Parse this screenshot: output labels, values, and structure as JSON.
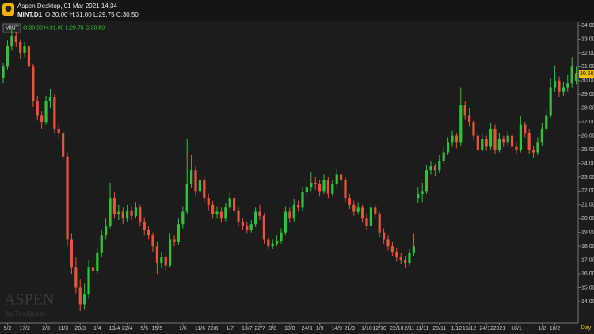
{
  "chart_data": {
    "type": "candlestick",
    "app_title": "Aspen Desktop, 01 Mar 2021 14:34",
    "symbol": "MINT,D1",
    "ohlc_text": "O:30.00 H:31.00 L:29.75 C:30.50",
    "chart_symbol": "MINT",
    "watermark": "ASPEN",
    "watermark_sub": "by ThaiQuest",
    "period_label": "Day",
    "price_tag": {
      "value": 30.5,
      "label": "30.50"
    },
    "up_color": "#2fc23a",
    "down_color": "#e8543a",
    "ylim": [
      12.45,
      34.23
    ],
    "xlim": [
      -0.75,
      134.45
    ],
    "yticks": [
      {
        "value": 14,
        "label": "14.00"
      },
      {
        "value": 15,
        "label": "15.00"
      },
      {
        "value": 16,
        "label": "16.00"
      },
      {
        "value": 17,
        "label": "17.00"
      },
      {
        "value": 18,
        "label": "18.00"
      },
      {
        "value": 19,
        "label": "19.00"
      },
      {
        "value": 20,
        "label": "20.00"
      },
      {
        "value": 21,
        "label": "21.00"
      },
      {
        "value": 22,
        "label": "22.00"
      },
      {
        "value": 23,
        "label": "23.00"
      },
      {
        "value": 24,
        "label": "24.00"
      },
      {
        "value": 25,
        "label": "25.00"
      },
      {
        "value": 26,
        "label": "26.00"
      },
      {
        "value": 27,
        "label": "27.00"
      },
      {
        "value": 28,
        "label": "28.00"
      },
      {
        "value": 29,
        "label": "29.00"
      },
      {
        "value": 30,
        "label": "30.00"
      },
      {
        "value": 31,
        "label": "31.00"
      },
      {
        "value": 32,
        "label": "32.00"
      },
      {
        "value": 33,
        "label": "33.00"
      },
      {
        "value": 34,
        "label": "34.00"
      }
    ],
    "xticks": [
      {
        "value": 1,
        "label": "5/2"
      },
      {
        "value": 5,
        "label": "17/2"
      },
      {
        "value": 10,
        "label": "2/3"
      },
      {
        "value": 14,
        "label": "11/3"
      },
      {
        "value": 18,
        "label": "20/3"
      },
      {
        "value": 22,
        "label": "1/4"
      },
      {
        "value": 26,
        "label": "13/4"
      },
      {
        "value": 29,
        "label": "22/4"
      },
      {
        "value": 33,
        "label": "5/5"
      },
      {
        "value": 36,
        "label": "15/5"
      },
      {
        "value": 42,
        "label": "1/6"
      },
      {
        "value": 46,
        "label": "11/6"
      },
      {
        "value": 49,
        "label": "22/6"
      },
      {
        "value": 53,
        "label": "1/7"
      },
      {
        "value": 57,
        "label": "13/7"
      },
      {
        "value": 60,
        "label": "22/7"
      },
      {
        "value": 63,
        "label": "3/8"
      },
      {
        "value": 67,
        "label": "13/8"
      },
      {
        "value": 71,
        "label": "24/8"
      },
      {
        "value": 74,
        "label": "1/9"
      },
      {
        "value": 78,
        "label": "14/9"
      },
      {
        "value": 81,
        "label": "21/9"
      },
      {
        "value": 85,
        "label": "1/10"
      },
      {
        "value": 88,
        "label": "12/10"
      },
      {
        "value": 92,
        "label": "22/10"
      },
      {
        "value": 95,
        "label": "2/11"
      },
      {
        "value": 98,
        "label": "11/11"
      },
      {
        "value": 102,
        "label": "20/11"
      },
      {
        "value": 106,
        "label": "1/12"
      },
      {
        "value": 109,
        "label": "15/12"
      },
      {
        "value": 113,
        "label": "24/12"
      },
      {
        "value": 116,
        "label": "2021"
      },
      {
        "value": 120,
        "label": "18/1"
      },
      {
        "value": 126,
        "label": "1/2"
      },
      {
        "value": 129,
        "label": "10/2"
      }
    ],
    "candles": [
      [
        30.2,
        31.3,
        29.8,
        31.0
      ],
      [
        31.0,
        32.9,
        30.8,
        32.5
      ],
      [
        32.5,
        33.8,
        32.2,
        33.2
      ],
      [
        33.2,
        33.5,
        32.4,
        32.8
      ],
      [
        32.8,
        33.0,
        31.6,
        32.0
      ],
      [
        32.0,
        32.8,
        31.7,
        32.5
      ],
      [
        32.5,
        32.7,
        30.6,
        31.0
      ],
      [
        31.0,
        31.2,
        28.1,
        28.5
      ],
      [
        28.5,
        28.9,
        27.1,
        27.5
      ],
      [
        27.5,
        27.8,
        26.5,
        27.0
      ],
      [
        27.0,
        28.9,
        26.8,
        28.5
      ],
      [
        28.5,
        29.4,
        28.0,
        28.8
      ],
      [
        28.8,
        29.0,
        26.2,
        26.5
      ],
      [
        26.5,
        26.9,
        25.8,
        26.2
      ],
      [
        26.2,
        26.4,
        24.2,
        24.5
      ],
      [
        24.5,
        24.8,
        18.0,
        18.5
      ],
      [
        18.5,
        18.9,
        16.0,
        16.5
      ],
      [
        16.5,
        17.2,
        14.6,
        15.0
      ],
      [
        15.0,
        15.6,
        13.3,
        13.8
      ],
      [
        13.8,
        15.3,
        13.4,
        14.5
      ],
      [
        14.5,
        17.0,
        14.2,
        16.5
      ],
      [
        16.5,
        17.0,
        15.9,
        16.2
      ],
      [
        16.2,
        17.9,
        16.0,
        17.5
      ],
      [
        17.5,
        19.2,
        17.2,
        18.8
      ],
      [
        18.8,
        20.0,
        18.5,
        19.5
      ],
      [
        19.5,
        22.6,
        19.3,
        21.5
      ],
      [
        21.5,
        21.9,
        20.0,
        20.3
      ],
      [
        20.3,
        21.0,
        19.9,
        20.5
      ],
      [
        20.5,
        20.8,
        19.6,
        20.0
      ],
      [
        20.0,
        21.0,
        19.8,
        20.6
      ],
      [
        20.6,
        20.9,
        19.9,
        20.2
      ],
      [
        20.2,
        21.2,
        20.0,
        20.8
      ],
      [
        20.8,
        21.0,
        19.5,
        19.8
      ],
      [
        19.8,
        20.1,
        18.8,
        19.2
      ],
      [
        19.2,
        19.5,
        18.5,
        18.8
      ],
      [
        18.8,
        19.0,
        17.6,
        18.0
      ],
      [
        18.0,
        18.3,
        16.0,
        16.8
      ],
      [
        16.8,
        17.6,
        16.4,
        17.2
      ],
      [
        17.2,
        17.4,
        16.2,
        16.6
      ],
      [
        16.6,
        18.9,
        16.5,
        18.5
      ],
      [
        18.5,
        18.8,
        18.0,
        18.3
      ],
      [
        18.3,
        20.0,
        18.1,
        19.6
      ],
      [
        19.6,
        20.9,
        19.3,
        20.5
      ],
      [
        20.5,
        25.8,
        20.3,
        22.5
      ],
      [
        22.5,
        24.6,
        22.2,
        23.5
      ],
      [
        23.5,
        23.8,
        21.6,
        22.0
      ],
      [
        22.0,
        23.2,
        21.8,
        22.8
      ],
      [
        22.8,
        23.0,
        21.2,
        21.5
      ],
      [
        21.5,
        21.8,
        20.6,
        21.0
      ],
      [
        21.0,
        21.3,
        20.0,
        20.3
      ],
      [
        20.3,
        20.9,
        20.0,
        20.5
      ],
      [
        20.5,
        20.8,
        19.7,
        20.0
      ],
      [
        20.0,
        21.1,
        19.8,
        20.8
      ],
      [
        20.8,
        21.9,
        20.5,
        21.5
      ],
      [
        21.5,
        21.7,
        20.3,
        20.6
      ],
      [
        20.6,
        20.9,
        19.5,
        19.8
      ],
      [
        19.8,
        20.0,
        19.2,
        19.5
      ],
      [
        19.5,
        19.8,
        18.9,
        19.2
      ],
      [
        19.2,
        19.9,
        19.0,
        19.6
      ],
      [
        19.6,
        20.8,
        19.4,
        20.5
      ],
      [
        20.5,
        21.0,
        19.9,
        20.2
      ],
      [
        20.2,
        20.4,
        18.2,
        18.5
      ],
      [
        18.5,
        18.7,
        17.7,
        18.0
      ],
      [
        18.0,
        18.5,
        17.8,
        18.2
      ],
      [
        18.2,
        18.8,
        18.0,
        18.4
      ],
      [
        18.4,
        19.3,
        18.2,
        19.0
      ],
      [
        19.0,
        20.9,
        18.8,
        20.5
      ],
      [
        20.5,
        20.8,
        19.7,
        20.0
      ],
      [
        20.0,
        21.4,
        19.8,
        21.0
      ],
      [
        21.0,
        21.3,
        20.5,
        20.8
      ],
      [
        20.8,
        22.3,
        20.6,
        21.9
      ],
      [
        21.9,
        22.8,
        21.6,
        22.3
      ],
      [
        22.3,
        23.4,
        22.0,
        22.6
      ],
      [
        22.6,
        23.0,
        22.1,
        22.5
      ],
      [
        22.5,
        22.8,
        21.6,
        22.0
      ],
      [
        22.0,
        23.2,
        21.8,
        22.8
      ],
      [
        22.8,
        23.0,
        21.5,
        21.8
      ],
      [
        21.8,
        22.8,
        21.6,
        22.5
      ],
      [
        22.5,
        23.6,
        22.3,
        23.2
      ],
      [
        23.2,
        23.4,
        22.4,
        22.8
      ],
      [
        22.8,
        23.0,
        21.2,
        21.5
      ],
      [
        21.5,
        21.8,
        20.7,
        21.0
      ],
      [
        21.0,
        21.3,
        20.2,
        20.5
      ],
      [
        20.5,
        21.2,
        20.3,
        20.8
      ],
      [
        20.8,
        21.0,
        19.7,
        20.0
      ],
      [
        20.0,
        20.3,
        19.2,
        19.5
      ],
      [
        19.5,
        21.1,
        19.3,
        20.8
      ],
      [
        20.8,
        21.0,
        20.0,
        20.3
      ],
      [
        20.3,
        20.5,
        18.7,
        19.0
      ],
      [
        19.0,
        19.3,
        18.2,
        18.5
      ],
      [
        18.5,
        18.8,
        17.7,
        18.0
      ],
      [
        18.0,
        18.3,
        17.3,
        17.6
      ],
      [
        17.6,
        17.9,
        16.9,
        17.2
      ],
      [
        17.2,
        17.5,
        16.7,
        17.0
      ],
      [
        17.0,
        17.3,
        16.4,
        16.8
      ],
      [
        16.8,
        17.8,
        16.6,
        17.5
      ],
      [
        17.5,
        18.9,
        17.3,
        18.0
      ],
      [
        21.5,
        22.3,
        21.1,
        21.8
      ],
      [
        21.8,
        22.6,
        21.2,
        22.0
      ],
      [
        22.0,
        23.9,
        21.8,
        23.5
      ],
      [
        23.5,
        24.2,
        23.2,
        23.8
      ],
      [
        23.8,
        24.0,
        23.1,
        23.5
      ],
      [
        23.5,
        24.6,
        23.3,
        24.2
      ],
      [
        24.2,
        25.2,
        24.0,
        24.8
      ],
      [
        24.8,
        25.9,
        24.6,
        25.5
      ],
      [
        25.5,
        26.4,
        25.2,
        26.0
      ],
      [
        26.0,
        26.2,
        25.1,
        25.5
      ],
      [
        25.5,
        29.5,
        25.3,
        28.2
      ],
      [
        28.2,
        28.5,
        27.2,
        27.5
      ],
      [
        27.5,
        28.0,
        26.7,
        27.0
      ],
      [
        27.0,
        27.2,
        25.7,
        26.0
      ],
      [
        26.0,
        26.3,
        24.7,
        25.0
      ],
      [
        25.0,
        26.2,
        24.8,
        25.8
      ],
      [
        25.8,
        26.0,
        24.9,
        25.2
      ],
      [
        25.2,
        26.9,
        25.0,
        26.5
      ],
      [
        26.5,
        26.8,
        24.7,
        25.0
      ],
      [
        25.0,
        26.2,
        24.8,
        25.8
      ],
      [
        25.8,
        26.0,
        25.2,
        25.5
      ],
      [
        25.5,
        26.4,
        25.3,
        26.0
      ],
      [
        26.0,
        26.2,
        24.9,
        25.2
      ],
      [
        25.2,
        25.5,
        24.7,
        25.0
      ],
      [
        25.0,
        27.4,
        24.8,
        26.8
      ],
      [
        26.8,
        27.0,
        25.9,
        26.2
      ],
      [
        26.2,
        26.5,
        24.7,
        25.0
      ],
      [
        25.0,
        25.3,
        24.4,
        24.8
      ],
      [
        24.8,
        25.9,
        24.6,
        25.5
      ],
      [
        25.5,
        26.9,
        25.3,
        26.5
      ],
      [
        26.5,
        27.9,
        26.3,
        27.5
      ],
      [
        27.5,
        30.2,
        27.3,
        29.5
      ],
      [
        29.5,
        31.1,
        29.2,
        30.0
      ],
      [
        30.0,
        30.3,
        28.8,
        29.2
      ],
      [
        29.2,
        29.9,
        28.9,
        29.5
      ],
      [
        29.5,
        30.4,
        29.2,
        29.8
      ],
      [
        29.8,
        31.7,
        29.5,
        31.0
      ],
      [
        30.0,
        31.0,
        29.75,
        30.5
      ]
    ]
  }
}
